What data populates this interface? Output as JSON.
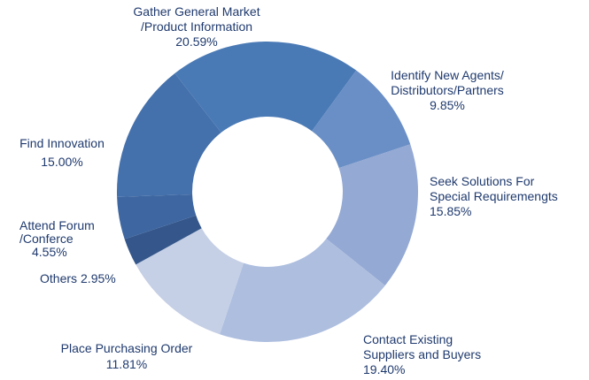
{
  "chart_data": {
    "type": "donut",
    "categories": [
      [
        "Gather General Market",
        "/Product Information"
      ],
      [
        "Identify New Agents/",
        "Distributors/Partners"
      ],
      [
        "Seek Solutions For",
        "Special Requiremengts"
      ],
      [
        "Contact Existing",
        "Suppliers and Buyers"
      ],
      [
        "Place Purchasing Order"
      ],
      [
        "Others"
      ],
      [
        "Attend Forum",
        "/Conferce"
      ],
      [
        "Find Innovation"
      ]
    ],
    "values": [
      20.59,
      9.85,
      15.85,
      19.4,
      11.81,
      2.95,
      4.55,
      15.0
    ],
    "value_labels": [
      "20.59%",
      "9.85%",
      "15.85%",
      "19.40%",
      "11.81%",
      "2.95%",
      "4.55%",
      "15.00%"
    ],
    "colors": [
      "#4a7ab5",
      "#6a8fc6",
      "#94a9d3",
      "#adbedf",
      "#c5cfe5",
      "#34568a",
      "#3e66a0",
      "#4470ab"
    ]
  }
}
